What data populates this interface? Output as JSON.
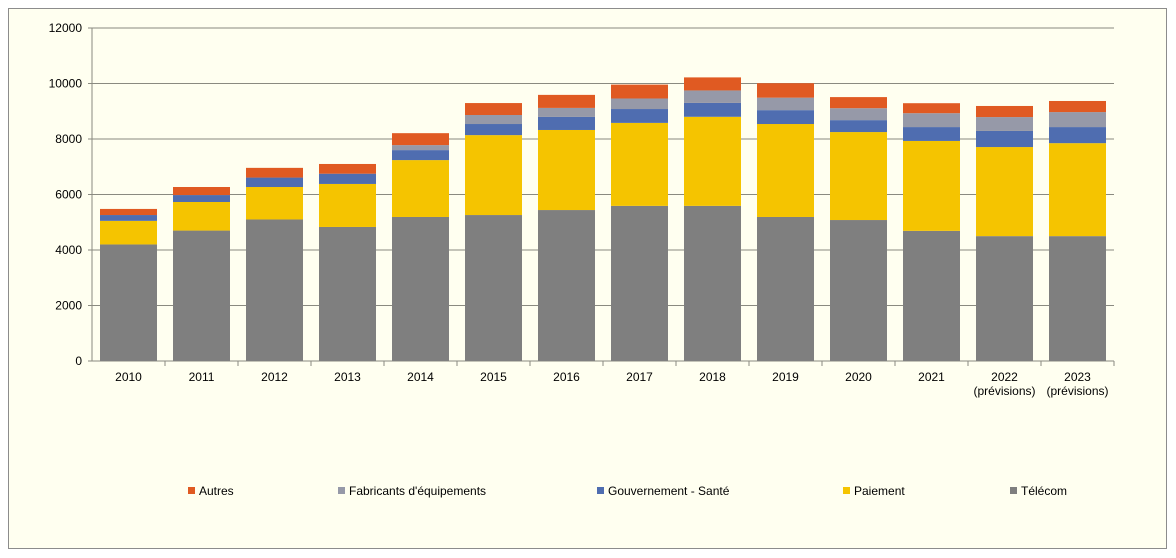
{
  "chart_data": {
    "type": "bar",
    "stacked": true,
    "categories": [
      "2010",
      "2011",
      "2012",
      "2013",
      "2014",
      "2015",
      "2016",
      "2017",
      "2018",
      "2019",
      "2020",
      "2021",
      "2022\n(prévisions)",
      "2023\n(prévisions)"
    ],
    "series": [
      {
        "name": "Télécom",
        "color": "#7F7F7F",
        "values": [
          4200,
          4700,
          5100,
          4830,
          5190,
          5260,
          5440,
          5590,
          5590,
          5190,
          5080,
          4690,
          4500,
          4500
        ]
      },
      {
        "name": "Paiement",
        "color": "#F5C400",
        "values": [
          850,
          1030,
          1170,
          1550,
          2050,
          2880,
          2885,
          2990,
          3210,
          3350,
          3170,
          3240,
          3210,
          3350
        ]
      },
      {
        "name": "Gouvernement - Santé",
        "color": "#4F6DB0",
        "values": [
          210,
          250,
          340,
          370,
          360,
          400,
          470,
          500,
          500,
          500,
          430,
          500,
          580,
          580
        ]
      },
      {
        "name": "Fabricants d'équipements",
        "color": "#9699A8",
        "values": [
          0,
          0,
          0,
          0,
          180,
          325,
          325,
          380,
          450,
          450,
          430,
          500,
          500,
          540
        ]
      },
      {
        "name": "Autres",
        "color": "#E05A22",
        "values": [
          220,
          290,
          350,
          350,
          430,
          430,
          470,
          500,
          470,
          520,
          400,
          360,
          400,
          400
        ]
      }
    ],
    "ylim": [
      0,
      12000
    ],
    "yticks": [
      0,
      2000,
      4000,
      6000,
      8000,
      10000,
      12000
    ],
    "grid": true,
    "legend_placement": "bottom",
    "legend_order": [
      "Autres",
      "Fabricants d'équipements",
      "Gouvernement - Santé",
      "Paiement",
      "Télécom"
    ],
    "title": "",
    "xlabel": "",
    "ylabel": ""
  }
}
